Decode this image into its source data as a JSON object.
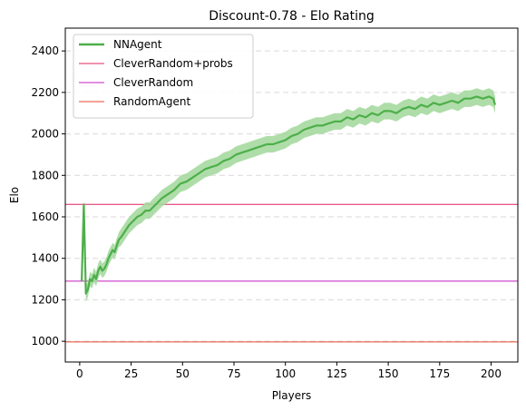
{
  "chart_data": {
    "type": "line",
    "title": "Discount-0.78 - Elo Rating",
    "xlabel": "Players",
    "ylabel": "Elo",
    "xlim": [
      -7,
      213
    ],
    "ylim": [
      900,
      2510
    ],
    "x_ticks": [
      0,
      25,
      50,
      75,
      100,
      125,
      150,
      175,
      200
    ],
    "y_ticks": [
      1000,
      1200,
      1400,
      1600,
      1800,
      2000,
      2200,
      2400
    ],
    "grid": "horizontal dashed",
    "legend_position": "top-left",
    "series": [
      {
        "name": "NNAgent",
        "color": "#4daf4a",
        "band_color": "#a6d9a0",
        "x": [
          1,
          2,
          3,
          4,
          5,
          6,
          7,
          8,
          9,
          10,
          11,
          12,
          13,
          14,
          15,
          16,
          17,
          18,
          19,
          20,
          22,
          24,
          26,
          28,
          30,
          32,
          34,
          36,
          38,
          40,
          43,
          46,
          49,
          52,
          55,
          58,
          61,
          64,
          67,
          70,
          73,
          76,
          79,
          82,
          85,
          88,
          91,
          94,
          97,
          100,
          103,
          106,
          109,
          112,
          115,
          118,
          121,
          124,
          127,
          130,
          133,
          136,
          139,
          142,
          145,
          148,
          151,
          154,
          157,
          160,
          163,
          166,
          169,
          172,
          175,
          178,
          181,
          184,
          187,
          190,
          193,
          196,
          199,
          201,
          202
        ],
        "values": [
          1290,
          1660,
          1230,
          1250,
          1300,
          1290,
          1320,
          1300,
          1340,
          1360,
          1340,
          1350,
          1370,
          1400,
          1420,
          1440,
          1430,
          1460,
          1490,
          1500,
          1530,
          1560,
          1580,
          1600,
          1610,
          1630,
          1630,
          1650,
          1670,
          1690,
          1710,
          1730,
          1760,
          1770,
          1790,
          1810,
          1830,
          1840,
          1850,
          1870,
          1880,
          1900,
          1910,
          1920,
          1930,
          1940,
          1950,
          1950,
          1960,
          1970,
          1990,
          2000,
          2020,
          2030,
          2040,
          2040,
          2050,
          2060,
          2060,
          2080,
          2070,
          2090,
          2080,
          2100,
          2090,
          2110,
          2110,
          2100,
          2120,
          2130,
          2120,
          2140,
          2130,
          2150,
          2140,
          2150,
          2160,
          2150,
          2170,
          2170,
          2180,
          2170,
          2180,
          2170,
          2140
        ],
        "band": [
          0,
          0,
          40,
          35,
          35,
          35,
          35,
          35,
          35,
          35,
          35,
          35,
          35,
          35,
          35,
          35,
          35,
          35,
          35,
          40,
          40,
          40,
          40,
          40,
          40,
          40,
          40,
          40,
          40,
          40,
          40,
          40,
          40,
          40,
          40,
          40,
          40,
          40,
          40,
          40,
          40,
          40,
          40,
          40,
          40,
          40,
          40,
          40,
          40,
          40,
          40,
          40,
          40,
          40,
          40,
          40,
          40,
          40,
          40,
          40,
          40,
          40,
          40,
          40,
          40,
          40,
          40,
          40,
          40,
          40,
          40,
          40,
          40,
          40,
          40,
          40,
          40,
          40,
          40,
          40,
          40,
          40,
          40,
          40,
          40
        ]
      }
    ],
    "reference_lines": [
      {
        "name": "CleverRandom+probs",
        "value": 1660,
        "color": "#e0245e"
      },
      {
        "name": "CleverRandom",
        "value": 1290,
        "color": "#c41fc4"
      },
      {
        "name": "RandomAgent",
        "value": 997,
        "color": "#e8472e"
      }
    ]
  }
}
